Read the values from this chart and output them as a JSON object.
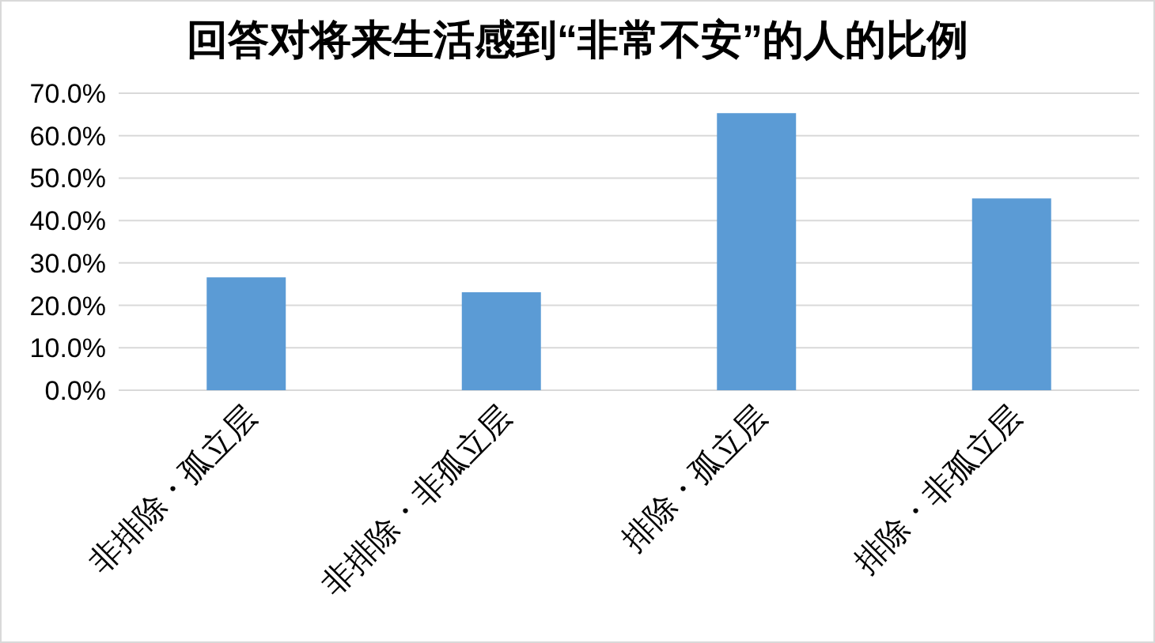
{
  "chart_data": {
    "type": "bar",
    "title": "回答对将来生活感到“非常不安”的人的比例",
    "categories": [
      "非排除・孤立层",
      "非排除・非孤立层",
      "排除・孤立层",
      "排除・非孤立层"
    ],
    "values": [
      26.6,
      23.1,
      65.3,
      45.2
    ],
    "color": "#5b9bd5",
    "ylim": [
      0,
      70
    ],
    "yticks": [
      {
        "value": 0,
        "label": "0.0%"
      },
      {
        "value": 10,
        "label": "10.0%"
      },
      {
        "value": 20,
        "label": "20.0%"
      },
      {
        "value": 30,
        "label": "30.0%"
      },
      {
        "value": 40,
        "label": "40.0%"
      },
      {
        "value": 50,
        "label": "50.0%"
      },
      {
        "value": 60,
        "label": "60.0%"
      },
      {
        "value": 70,
        "label": "70.0%"
      }
    ],
    "grid": "y"
  }
}
